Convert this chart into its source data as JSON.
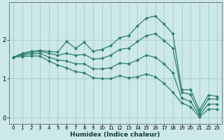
{
  "xlabel": "Humidex (Indice chaleur)",
  "background_color": "#cce8e8",
  "grid_color": "#aacfcf",
  "line_color": "#2e7d6e",
  "x_values": [
    0,
    1,
    2,
    3,
    4,
    5,
    6,
    7,
    8,
    9,
    10,
    11,
    12,
    13,
    14,
    15,
    16,
    17,
    18,
    19,
    20,
    21,
    22,
    23
  ],
  "line1": [
    1.55,
    1.65,
    1.7,
    1.72,
    1.7,
    1.68,
    1.95,
    1.78,
    1.93,
    1.7,
    1.75,
    1.85,
    2.05,
    2.1,
    2.35,
    2.55,
    2.6,
    2.4,
    2.15,
    0.72,
    0.72,
    0.2,
    0.58,
    0.55
  ],
  "line2": [
    1.55,
    1.63,
    1.67,
    1.7,
    1.65,
    1.6,
    1.65,
    1.6,
    1.62,
    1.5,
    1.52,
    1.6,
    1.75,
    1.78,
    1.95,
    2.1,
    2.15,
    1.98,
    1.78,
    0.65,
    0.6,
    0.12,
    0.48,
    0.48
  ],
  "line3": [
    1.55,
    1.6,
    1.63,
    1.65,
    1.55,
    1.48,
    1.45,
    1.38,
    1.38,
    1.25,
    1.25,
    1.28,
    1.4,
    1.38,
    1.48,
    1.6,
    1.55,
    1.38,
    1.15,
    0.5,
    0.42,
    0.06,
    0.35,
    0.35
  ],
  "line4": [
    1.55,
    1.57,
    1.58,
    1.58,
    1.45,
    1.35,
    1.28,
    1.18,
    1.15,
    1.02,
    1.0,
    1.0,
    1.08,
    1.02,
    1.05,
    1.12,
    1.05,
    0.88,
    0.65,
    0.38,
    0.28,
    0.02,
    0.22,
    0.22
  ],
  "ylim": [
    -0.15,
    2.95
  ],
  "xlim": [
    -0.5,
    23.5
  ],
  "yticks": [
    0,
    1,
    2
  ],
  "xticks": [
    0,
    1,
    2,
    3,
    4,
    5,
    6,
    7,
    8,
    9,
    10,
    11,
    12,
    13,
    14,
    15,
    16,
    17,
    18,
    19,
    20,
    21,
    22,
    23
  ],
  "marker_size": 2.2,
  "line_width": 0.9
}
